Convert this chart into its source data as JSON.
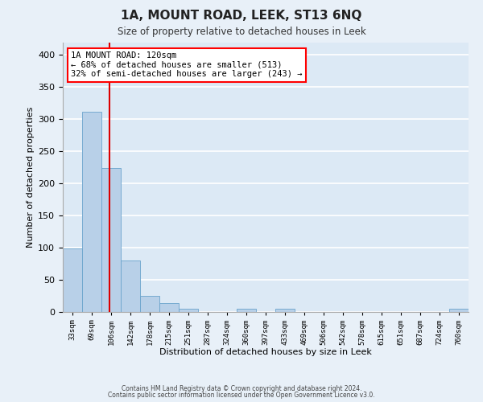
{
  "title": "1A, MOUNT ROAD, LEEK, ST13 6NQ",
  "subtitle": "Size of property relative to detached houses in Leek",
  "xlabel": "Distribution of detached houses by size in Leek",
  "ylabel": "Number of detached properties",
  "bin_labels": [
    "33sqm",
    "69sqm",
    "106sqm",
    "142sqm",
    "178sqm",
    "215sqm",
    "251sqm",
    "287sqm",
    "324sqm",
    "360sqm",
    "397sqm",
    "433sqm",
    "469sqm",
    "506sqm",
    "542sqm",
    "578sqm",
    "615sqm",
    "651sqm",
    "687sqm",
    "724sqm",
    "760sqm"
  ],
  "bin_values": [
    99,
    311,
    224,
    80,
    25,
    13,
    5,
    0,
    0,
    5,
    0,
    5,
    0,
    0,
    0,
    0,
    0,
    0,
    0,
    0,
    5
  ],
  "bar_color": "#b8d0e8",
  "bar_edge_color": "#6aa3cc",
  "background_color": "#dce9f5",
  "grid_color": "#ffffff",
  "fig_background_color": "#e8f0f8",
  "vline_color": "#dd0000",
  "annotation_box_text": "1A MOUNT ROAD: 120sqm\n← 68% of detached houses are smaller (513)\n32% of semi-detached houses are larger (243) →",
  "ylim": [
    0,
    420
  ],
  "yticks": [
    0,
    50,
    100,
    150,
    200,
    250,
    300,
    350,
    400
  ],
  "footer_line1": "Contains HM Land Registry data © Crown copyright and database right 2024.",
  "footer_line2": "Contains public sector information licensed under the Open Government Licence v3.0."
}
